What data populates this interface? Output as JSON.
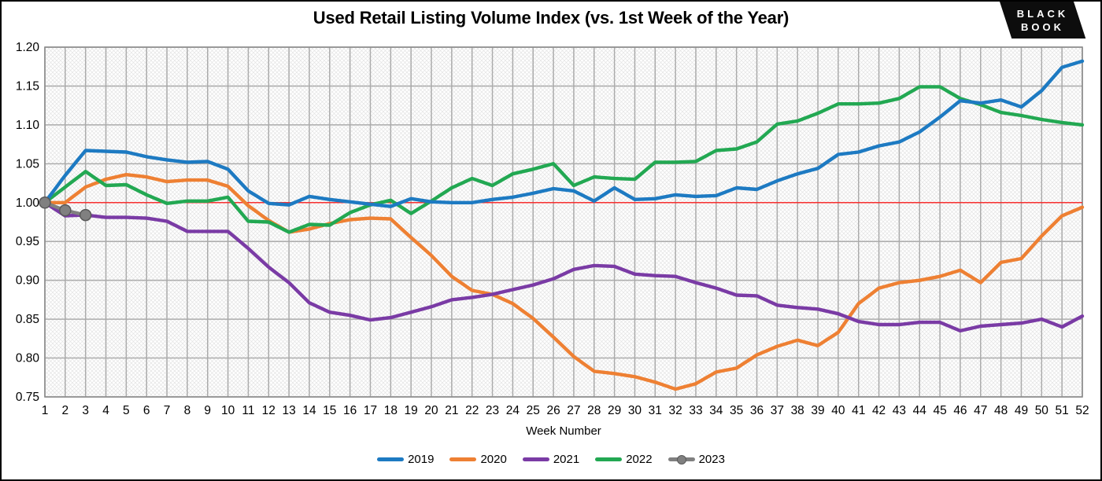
{
  "header": {
    "title": "Used Retail Listing Volume Index (vs. 1st Week of the Year)"
  },
  "logo": {
    "line1": "BLACK",
    "line2": "BOOK",
    "bg_color": "#0d0d0d",
    "text_color": "#ffffff"
  },
  "chart_data": {
    "type": "line",
    "title": "Used Retail Listing Volume Index (vs. 1st Week of the Year)",
    "xlabel": "Week Number",
    "ylabel": "",
    "x": [
      1,
      2,
      3,
      4,
      5,
      6,
      7,
      8,
      9,
      10,
      11,
      12,
      13,
      14,
      15,
      16,
      17,
      18,
      19,
      20,
      21,
      22,
      23,
      24,
      25,
      26,
      27,
      28,
      29,
      30,
      31,
      32,
      33,
      34,
      35,
      36,
      37,
      38,
      39,
      40,
      41,
      42,
      43,
      44,
      45,
      46,
      47,
      48,
      49,
      50,
      51,
      52
    ],
    "ylim": [
      0.75,
      1.2
    ],
    "y_tick_step": 0.05,
    "grid": true,
    "legend_position": "bottom",
    "reference_line": {
      "y": 1.0,
      "color": "#ff2222"
    },
    "grid_color": "#ababab",
    "border_color": "#8c8c8c",
    "series": [
      {
        "name": "2019",
        "color": "#1d7ac2",
        "marker": false,
        "values": [
          1.0,
          1.035,
          1.067,
          1.066,
          1.065,
          1.059,
          1.055,
          1.052,
          1.053,
          1.043,
          1.015,
          0.999,
          0.997,
          1.008,
          1.004,
          1.001,
          0.998,
          0.995,
          1.005,
          1.001,
          1.0,
          1.0,
          1.004,
          1.007,
          1.012,
          1.018,
          1.015,
          1.002,
          1.019,
          1.004,
          1.005,
          1.01,
          1.008,
          1.009,
          1.019,
          1.017,
          1.028,
          1.037,
          1.044,
          1.062,
          1.065,
          1.073,
          1.078,
          1.091,
          1.11,
          1.131,
          1.128,
          1.132,
          1.123,
          1.144,
          1.174,
          1.182
        ]
      },
      {
        "name": "2020",
        "color": "#ee8033",
        "marker": false,
        "values": [
          1.0,
          1.0,
          1.02,
          1.03,
          1.036,
          1.033,
          1.027,
          1.029,
          1.029,
          1.021,
          0.996,
          0.977,
          0.962,
          0.966,
          0.973,
          0.978,
          0.98,
          0.979,
          0.955,
          0.932,
          0.905,
          0.887,
          0.882,
          0.87,
          0.851,
          0.827,
          0.802,
          0.783,
          0.78,
          0.776,
          0.769,
          0.76,
          0.767,
          0.782,
          0.787,
          0.804,
          0.815,
          0.823,
          0.816,
          0.833,
          0.87,
          0.89,
          0.897,
          0.9,
          0.905,
          0.913,
          0.897,
          0.923,
          0.928,
          0.957,
          0.983,
          0.994
        ]
      },
      {
        "name": "2021",
        "color": "#7a3ba5",
        "marker": false,
        "values": [
          1.0,
          0.983,
          0.984,
          0.981,
          0.981,
          0.98,
          0.976,
          0.963,
          0.963,
          0.963,
          0.941,
          0.917,
          0.897,
          0.871,
          0.859,
          0.855,
          0.849,
          0.852,
          0.859,
          0.866,
          0.875,
          0.878,
          0.882,
          0.888,
          0.894,
          0.902,
          0.914,
          0.919,
          0.918,
          0.908,
          0.906,
          0.905,
          0.897,
          0.89,
          0.881,
          0.88,
          0.868,
          0.865,
          0.863,
          0.857,
          0.847,
          0.843,
          0.843,
          0.846,
          0.846,
          0.835,
          0.841,
          0.843,
          0.845,
          0.85,
          0.84,
          0.854
        ]
      },
      {
        "name": "2022",
        "color": "#22a852",
        "marker": false,
        "values": [
          1.0,
          1.02,
          1.04,
          1.022,
          1.023,
          1.01,
          0.999,
          1.002,
          1.002,
          1.007,
          0.976,
          0.975,
          0.962,
          0.972,
          0.971,
          0.987,
          0.997,
          1.003,
          0.986,
          1.002,
          1.019,
          1.031,
          1.022,
          1.037,
          1.043,
          1.05,
          1.022,
          1.033,
          1.031,
          1.03,
          1.052,
          1.052,
          1.053,
          1.067,
          1.069,
          1.078,
          1.101,
          1.105,
          1.115,
          1.127,
          1.127,
          1.128,
          1.134,
          1.149,
          1.149,
          1.134,
          1.126,
          1.116,
          1.112,
          1.107,
          1.103,
          1.1
        ]
      },
      {
        "name": "2023",
        "color": "#808080",
        "marker": true,
        "marker_edge": "#595959",
        "values": [
          1.0,
          0.99,
          0.984
        ]
      }
    ]
  }
}
